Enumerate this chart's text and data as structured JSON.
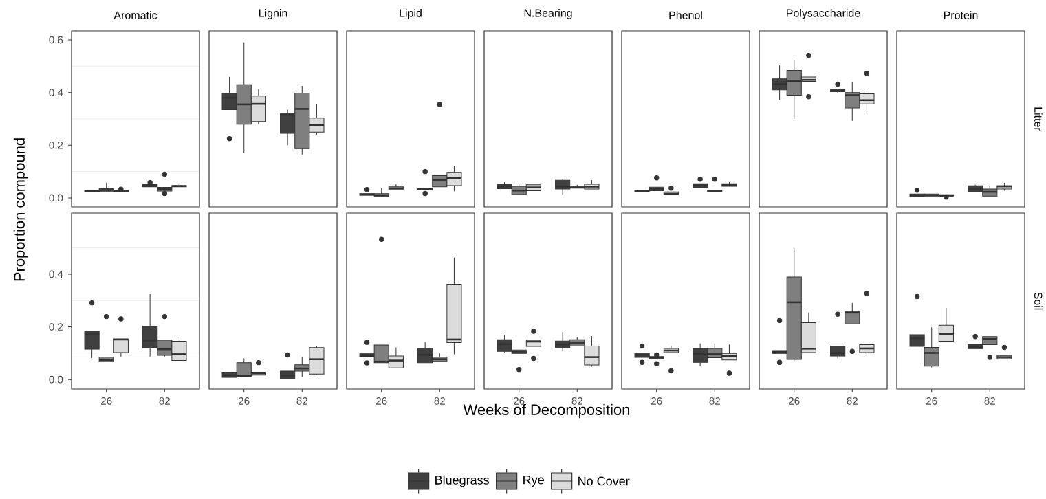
{
  "chart_data": [
    {
      "type": "box",
      "title": "Aromatic",
      "ylabel": "Proportion compound",
      "categories": [
        "26",
        "82"
      ],
      "ylim": [
        -0.034,
        0.634
      ],
      "yticks": [
        {
          "value": 0,
          "label": "0.0"
        },
        {
          "value": 0.2,
          "label": "0.2"
        },
        {
          "value": 0.4,
          "label": "0.4"
        },
        {
          "value": 0.6,
          "label": "0.6"
        }
      ],
      "grid": "y",
      "tick_labels": "y",
      "legend": "bottom",
      "series": [
        {
          "name": "Bluegrass",
          "color": "#404040",
          "boxes": [
            {
              "low": 0.022,
              "q1": 0.022,
              "median": 0.026,
              "q3": 0.03,
              "high": 0.03
            },
            {
              "low": 0.042,
              "q1": 0.042,
              "median": 0.046,
              "q3": 0.052,
              "high": 0.054,
              "outliers": [
                0.058
              ]
            }
          ]
        },
        {
          "name": "Rye",
          "color": "#7f7f7f",
          "boxes": [
            {
              "low": 0.025,
              "q1": 0.025,
              "median": 0.03,
              "q3": 0.035,
              "high": 0.058
            },
            {
              "low": 0.026,
              "q1": 0.026,
              "median": 0.034,
              "q3": 0.04,
              "high": 0.04,
              "outliers": [
                0.09,
                0.017
              ]
            }
          ]
        },
        {
          "name": "No Cover",
          "color": "#dcdcdc",
          "boxes": [
            {
              "low": 0.022,
              "q1": 0.022,
              "median": 0.025,
              "q3": 0.028,
              "high": 0.028,
              "outliers": [
                0.033
              ]
            },
            {
              "low": 0.042,
              "q1": 0.042,
              "median": 0.045,
              "q3": 0.047,
              "high": 0.058
            }
          ]
        }
      ]
    },
    {
      "type": "box",
      "title": "Lignin",
      "categories": [
        "26",
        "82"
      ],
      "ylim": [
        -0.034,
        0.634
      ],
      "grid": "y",
      "tick_labels": false,
      "series": [
        {
          "color": "#404040",
          "boxes": [
            {
              "low": 0.335,
              "q1": 0.335,
              "median": 0.38,
              "q3": 0.397,
              "high": 0.46,
              "outliers": [
                0.225
              ]
            },
            {
              "low": 0.2,
              "q1": 0.245,
              "median": 0.315,
              "q3": 0.32,
              "high": 0.335
            }
          ]
        },
        {
          "color": "#7f7f7f",
          "boxes": [
            {
              "low": 0.17,
              "q1": 0.28,
              "median": 0.355,
              "q3": 0.43,
              "high": 0.59
            },
            {
              "low": 0.165,
              "q1": 0.187,
              "median": 0.338,
              "q3": 0.398,
              "high": 0.425
            }
          ]
        },
        {
          "color": "#dcdcdc",
          "boxes": [
            {
              "low": 0.28,
              "q1": 0.29,
              "median": 0.357,
              "q3": 0.387,
              "high": 0.413
            },
            {
              "low": 0.24,
              "q1": 0.25,
              "median": 0.277,
              "q3": 0.303,
              "high": 0.355
            }
          ]
        }
      ]
    },
    {
      "type": "box",
      "title": "Lipid",
      "categories": [
        "26",
        "82"
      ],
      "ylim": [
        -0.034,
        0.634
      ],
      "grid": "y",
      "tick_labels": false,
      "series": [
        {
          "color": "#404040",
          "boxes": [
            {
              "low": 0.01,
              "q1": 0.01,
              "median": 0.013,
              "q3": 0.016,
              "high": 0.016,
              "outliers": [
                0.032
              ]
            },
            {
              "low": 0.03,
              "q1": 0.03,
              "median": 0.035,
              "q3": 0.038,
              "high": 0.038,
              "outliers": [
                0.1,
                0.017
              ]
            }
          ]
        },
        {
          "color": "#7f7f7f",
          "boxes": [
            {
              "low": 0.006,
              "q1": 0.006,
              "median": 0.01,
              "q3": 0.016,
              "high": 0.038
            },
            {
              "low": 0.042,
              "q1": 0.042,
              "median": 0.068,
              "q3": 0.085,
              "high": 0.085,
              "outliers": [
                0.355
              ]
            }
          ]
        },
        {
          "color": "#dcdcdc",
          "boxes": [
            {
              "low": 0.033,
              "q1": 0.033,
              "median": 0.037,
              "q3": 0.042,
              "high": 0.052
            },
            {
              "low": 0.025,
              "q1": 0.047,
              "median": 0.075,
              "q3": 0.097,
              "high": 0.122
            }
          ]
        }
      ]
    },
    {
      "type": "box",
      "title": "N.Bearing",
      "categories": [
        "26",
        "82"
      ],
      "ylim": [
        -0.034,
        0.634
      ],
      "grid": "y",
      "tick_labels": false,
      "series": [
        {
          "color": "#404040",
          "boxes": [
            {
              "low": 0.035,
              "q1": 0.035,
              "median": 0.044,
              "q3": 0.052,
              "high": 0.06
            },
            {
              "low": 0.012,
              "q1": 0.034,
              "median": 0.044,
              "q3": 0.067,
              "high": 0.073
            }
          ]
        },
        {
          "color": "#7f7f7f",
          "boxes": [
            {
              "low": 0.013,
              "q1": 0.013,
              "median": 0.028,
              "q3": 0.044,
              "high": 0.05
            },
            {
              "low": 0.037,
              "q1": 0.037,
              "median": 0.04,
              "q3": 0.042,
              "high": 0.05
            }
          ]
        },
        {
          "color": "#dcdcdc",
          "boxes": [
            {
              "low": 0.027,
              "q1": 0.027,
              "median": 0.04,
              "q3": 0.05,
              "high": 0.05
            },
            {
              "low": 0.034,
              "q1": 0.034,
              "median": 0.043,
              "q3": 0.052,
              "high": 0.068
            }
          ]
        }
      ]
    },
    {
      "type": "box",
      "title": "Phenol",
      "categories": [
        "26",
        "82"
      ],
      "ylim": [
        -0.034,
        0.634
      ],
      "grid": "y",
      "tick_labels": false,
      "series": [
        {
          "color": "#404040",
          "boxes": [
            {
              "low": 0.025,
              "q1": 0.025,
              "median": 0.027,
              "q3": 0.03,
              "high": 0.03
            },
            {
              "low": 0.039,
              "q1": 0.039,
              "median": 0.049,
              "q3": 0.054,
              "high": 0.054,
              "outliers": [
                0.071
              ]
            }
          ]
        },
        {
          "color": "#7f7f7f",
          "boxes": [
            {
              "low": 0.027,
              "q1": 0.027,
              "median": 0.034,
              "q3": 0.041,
              "high": 0.041,
              "outliers": [
                0.076
              ]
            },
            {
              "low": 0.025,
              "q1": 0.025,
              "median": 0.027,
              "q3": 0.03,
              "high": 0.03,
              "outliers": [
                0.071
              ]
            }
          ]
        },
        {
          "color": "#dcdcdc",
          "boxes": [
            {
              "low": 0.012,
              "q1": 0.012,
              "median": 0.016,
              "q3": 0.023,
              "high": 0.023,
              "outliers": [
                0.037
              ]
            },
            {
              "low": 0.044,
              "q1": 0.044,
              "median": 0.049,
              "q3": 0.054,
              "high": 0.06
            }
          ]
        }
      ]
    },
    {
      "type": "box",
      "title": "Polysaccharide",
      "categories": [
        "26",
        "82"
      ],
      "ylim": [
        -0.034,
        0.634
      ],
      "grid": "y",
      "tick_labels": false,
      "series": [
        {
          "color": "#404040",
          "boxes": [
            {
              "low": 0.372,
              "q1": 0.41,
              "median": 0.432,
              "q3": 0.452,
              "high": 0.503
            },
            {
              "low": 0.398,
              "q1": 0.403,
              "median": 0.408,
              "q3": 0.41,
              "high": 0.41,
              "outliers": [
                0.432
              ]
            }
          ]
        },
        {
          "color": "#7f7f7f",
          "boxes": [
            {
              "low": 0.3,
              "q1": 0.39,
              "median": 0.444,
              "q3": 0.484,
              "high": 0.523
            },
            {
              "low": 0.293,
              "q1": 0.342,
              "median": 0.39,
              "q3": 0.4,
              "high": 0.439
            }
          ]
        },
        {
          "color": "#dcdcdc",
          "boxes": [
            {
              "low": 0.442,
              "q1": 0.442,
              "median": 0.448,
              "q3": 0.459,
              "high": 0.459,
              "outliers": [
                0.541,
                0.384
              ]
            },
            {
              "low": 0.32,
              "q1": 0.357,
              "median": 0.371,
              "q3": 0.395,
              "high": 0.4,
              "outliers": [
                0.473
              ]
            }
          ]
        }
      ]
    },
    {
      "type": "box",
      "title": "Protein",
      "annotations": [
        "Litter"
      ],
      "categories": [
        "26",
        "82"
      ],
      "ylim": [
        -0.034,
        0.634
      ],
      "grid": "y",
      "tick_labels": false,
      "series": [
        {
          "color": "#404040",
          "boxes": [
            {
              "low": 0.004,
              "q1": 0.004,
              "median": 0.01,
              "q3": 0.015,
              "high": 0.015,
              "outliers": [
                0.029
              ]
            },
            {
              "low": 0.023,
              "q1": 0.023,
              "median": 0.035,
              "q3": 0.046,
              "high": 0.05
            }
          ]
        },
        {
          "color": "#7f7f7f",
          "boxes": [
            {
              "low": 0.004,
              "q1": 0.004,
              "median": 0.01,
              "q3": 0.015,
              "high": 0.015
            },
            {
              "low": 0.007,
              "q1": 0.007,
              "median": 0.023,
              "q3": 0.034,
              "high": 0.044
            }
          ]
        },
        {
          "color": "#dcdcdc",
          "boxes": [
            {
              "low": 0.007,
              "q1": 0.007,
              "median": 0.009,
              "q3": 0.012,
              "high": 0.012,
              "outliers": [
                0.003
              ]
            },
            {
              "low": 0.027,
              "q1": 0.034,
              "median": 0.044,
              "q3": 0.046,
              "high": 0.057
            }
          ]
        }
      ]
    },
    {
      "type": "box",
      "categories": [
        "26",
        "82"
      ],
      "ylim": [
        -0.036,
        0.632
      ],
      "yticks": [
        {
          "value": 0,
          "label": "0.0"
        },
        {
          "value": 0.2,
          "label": "0.2"
        },
        {
          "value": 0.4,
          "label": "0.4"
        }
      ],
      "grid": "y",
      "series": [
        {
          "color": "#404040",
          "boxes": [
            {
              "low": 0.082,
              "q1": 0.115,
              "median": 0.171,
              "q3": 0.184,
              "high": 0.184,
              "outliers": [
                0.291
              ]
            },
            {
              "low": 0.087,
              "q1": 0.12,
              "median": 0.148,
              "q3": 0.202,
              "high": 0.324
            }
          ]
        },
        {
          "color": "#7f7f7f",
          "boxes": [
            {
              "low": 0.067,
              "q1": 0.067,
              "median": 0.074,
              "q3": 0.085,
              "high": 0.085,
              "outliers": [
                0.239
              ]
            },
            {
              "low": 0.087,
              "q1": 0.092,
              "median": 0.115,
              "q3": 0.149,
              "high": 0.149,
              "outliers": [
                0.239
              ]
            }
          ]
        },
        {
          "color": "#dcdcdc",
          "boxes": [
            {
              "low": 0.086,
              "q1": 0.102,
              "median": 0.152,
              "q3": 0.154,
              "high": 0.154,
              "outliers": [
                0.23
              ]
            },
            {
              "low": 0.072,
              "q1": 0.072,
              "median": 0.096,
              "q3": 0.145,
              "high": 0.161
            }
          ]
        }
      ]
    },
    {
      "type": "box",
      "categories": [
        "26",
        "82"
      ],
      "ylim": [
        -0.036,
        0.632
      ],
      "grid": "y",
      "tick_labels": "x",
      "series": [
        {
          "color": "#404040",
          "boxes": [
            {
              "low": 0.008,
              "q1": 0.008,
              "median": 0.016,
              "q3": 0.028,
              "high": 0.028
            },
            {
              "low": 0.002,
              "q1": 0.002,
              "median": 0.015,
              "q3": 0.032,
              "high": 0.032,
              "outliers": [
                0.093
              ]
            }
          ]
        },
        {
          "color": "#7f7f7f",
          "boxes": [
            {
              "low": 0.012,
              "q1": 0.012,
              "median": 0.015,
              "q3": 0.064,
              "high": 0.08
            },
            {
              "low": 0.01,
              "q1": 0.032,
              "median": 0.042,
              "q3": 0.056,
              "high": 0.085
            }
          ]
        },
        {
          "color": "#dcdcdc",
          "boxes": [
            {
              "low": 0.017,
              "q1": 0.017,
              "median": 0.023,
              "q3": 0.028,
              "high": 0.028,
              "outliers": [
                0.064
              ]
            },
            {
              "low": 0.016,
              "q1": 0.021,
              "median": 0.077,
              "q3": 0.121,
              "high": 0.126
            }
          ]
        }
      ]
    },
    {
      "type": "box",
      "categories": [
        "26",
        "82"
      ],
      "ylim": [
        -0.036,
        0.632
      ],
      "grid": "y",
      "tick_labels": "x",
      "series": [
        {
          "color": "#404040",
          "boxes": [
            {
              "low": 0.088,
              "q1": 0.088,
              "median": 0.092,
              "q3": 0.098,
              "high": 0.098,
              "outliers": [
                0.141,
                0.063
              ]
            },
            {
              "low": 0.064,
              "q1": 0.064,
              "median": 0.094,
              "q3": 0.117,
              "high": 0.143
            }
          ]
        },
        {
          "color": "#7f7f7f",
          "boxes": [
            {
              "low": 0.064,
              "q1": 0.064,
              "median": 0.068,
              "q3": 0.131,
              "high": 0.131,
              "outliers": [
                0.532
              ]
            },
            {
              "low": 0.068,
              "q1": 0.068,
              "median": 0.077,
              "q3": 0.085,
              "high": 0.099
            }
          ]
        },
        {
          "color": "#dcdcdc",
          "boxes": [
            {
              "low": 0.044,
              "q1": 0.044,
              "median": 0.072,
              "q3": 0.089,
              "high": 0.122
            },
            {
              "low": 0.096,
              "q1": 0.14,
              "median": 0.152,
              "q3": 0.362,
              "high": 0.463
            }
          ]
        }
      ]
    },
    {
      "type": "box",
      "xlabel": "Weeks of Decomposition",
      "categories": [
        "26",
        "82"
      ],
      "ylim": [
        -0.036,
        0.632
      ],
      "grid": "y",
      "tick_labels": "x",
      "series": [
        {
          "color": "#404040",
          "boxes": [
            {
              "low": 0.103,
              "q1": 0.107,
              "median": 0.134,
              "q3": 0.151,
              "high": 0.17
            },
            {
              "low": 0.107,
              "q1": 0.121,
              "median": 0.133,
              "q3": 0.146,
              "high": 0.18
            }
          ]
        },
        {
          "color": "#7f7f7f",
          "boxes": [
            {
              "low": 0.099,
              "q1": 0.099,
              "median": 0.106,
              "q3": 0.112,
              "high": 0.112,
              "outliers": [
                0.038
              ]
            },
            {
              "low": 0.127,
              "q1": 0.127,
              "median": 0.14,
              "q3": 0.151,
              "high": 0.16
            }
          ]
        },
        {
          "color": "#dcdcdc",
          "boxes": [
            {
              "low": 0.126,
              "q1": 0.126,
              "median": 0.144,
              "q3": 0.149,
              "high": 0.149,
              "outliers": [
                0.183,
                0.08
              ]
            },
            {
              "low": 0.049,
              "q1": 0.055,
              "median": 0.085,
              "q3": 0.127,
              "high": 0.165
            }
          ]
        }
      ]
    },
    {
      "type": "box",
      "categories": [
        "26",
        "82"
      ],
      "ylim": [
        -0.036,
        0.632
      ],
      "grid": "y",
      "tick_labels": "x",
      "series": [
        {
          "color": "#404040",
          "boxes": [
            {
              "low": 0.084,
              "q1": 0.084,
              "median": 0.093,
              "q3": 0.099,
              "high": 0.099,
              "outliers": [
                0.127,
                0.065
              ]
            },
            {
              "low": 0.051,
              "q1": 0.065,
              "median": 0.098,
              "q3": 0.118,
              "high": 0.137
            }
          ]
        },
        {
          "color": "#7f7f7f",
          "boxes": [
            {
              "low": 0.079,
              "q1": 0.079,
              "median": 0.083,
              "q3": 0.087,
              "high": 0.087,
              "outliers": [
                0.093,
                0.06
              ]
            },
            {
              "low": 0.083,
              "q1": 0.083,
              "median": 0.096,
              "q3": 0.118,
              "high": 0.137
            }
          ]
        },
        {
          "color": "#dcdcdc",
          "boxes": [
            {
              "low": 0.102,
              "q1": 0.102,
              "median": 0.11,
              "q3": 0.118,
              "high": 0.127,
              "outliers": [
                0.033
              ]
            },
            {
              "low": 0.074,
              "q1": 0.074,
              "median": 0.089,
              "q3": 0.099,
              "high": 0.133,
              "outliers": [
                0.024
              ]
            }
          ]
        }
      ]
    },
    {
      "type": "box",
      "categories": [
        "26",
        "82"
      ],
      "ylim": [
        -0.036,
        0.632
      ],
      "grid": "y",
      "tick_labels": "x",
      "series": [
        {
          "color": "#404040",
          "boxes": [
            {
              "low": 0.099,
              "q1": 0.099,
              "median": 0.104,
              "q3": 0.11,
              "high": 0.11,
              "outliers": [
                0.224,
                0.065
              ]
            },
            {
              "low": 0.08,
              "q1": 0.089,
              "median": 0.1,
              "q3": 0.127,
              "high": 0.127,
              "outliers": [
                0.248
              ]
            }
          ]
        },
        {
          "color": "#7f7f7f",
          "boxes": [
            {
              "low": 0.071,
              "q1": 0.076,
              "median": 0.293,
              "q3": 0.389,
              "high": 0.498
            },
            {
              "low": 0.211,
              "q1": 0.211,
              "median": 0.254,
              "q3": 0.257,
              "high": 0.291,
              "outliers": [
                0.107
              ]
            }
          ]
        },
        {
          "color": "#dcdcdc",
          "boxes": [
            {
              "low": 0.102,
              "q1": 0.102,
              "median": 0.117,
              "q3": 0.216,
              "high": 0.254
            },
            {
              "low": 0.089,
              "q1": 0.102,
              "median": 0.118,
              "q3": 0.132,
              "high": 0.132,
              "outliers": [
                0.327
              ]
            }
          ]
        }
      ]
    },
    {
      "type": "box",
      "annotations": [
        "Soil"
      ],
      "categories": [
        "26",
        "82"
      ],
      "ylim": [
        -0.036,
        0.632
      ],
      "grid": "y",
      "tick_labels": "x",
      "series": [
        {
          "color": "#404040",
          "boxes": [
            {
              "low": 0.126,
              "q1": 0.126,
              "median": 0.156,
              "q3": 0.17,
              "high": 0.17,
              "outliers": [
                0.315
              ]
            },
            {
              "low": 0.117,
              "q1": 0.117,
              "median": 0.124,
              "q3": 0.132,
              "high": 0.132,
              "outliers": [
                0.163
              ]
            }
          ]
        },
        {
          "color": "#7f7f7f",
          "boxes": [
            {
              "low": 0.046,
              "q1": 0.051,
              "median": 0.101,
              "q3": 0.122,
              "high": 0.198
            },
            {
              "low": 0.132,
              "q1": 0.132,
              "median": 0.154,
              "q3": 0.163,
              "high": 0.163,
              "outliers": [
                0.084
              ]
            }
          ]
        },
        {
          "color": "#dcdcdc",
          "boxes": [
            {
              "low": 0.145,
              "q1": 0.145,
              "median": 0.172,
              "q3": 0.206,
              "high": 0.272
            },
            {
              "low": 0.079,
              "q1": 0.079,
              "median": 0.085,
              "q3": 0.091,
              "high": 0.091,
              "outliers": [
                0.122
              ]
            }
          ]
        }
      ]
    }
  ]
}
